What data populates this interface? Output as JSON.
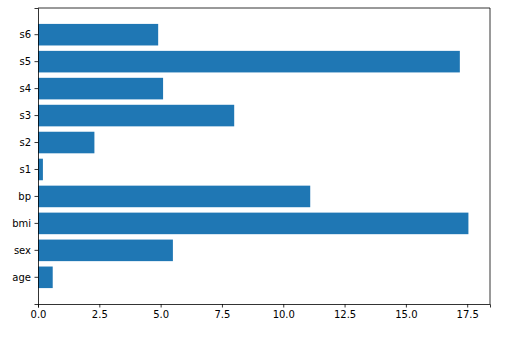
{
  "chart_data": {
    "type": "bar",
    "orientation": "horizontal",
    "categories": [
      "age",
      "sex",
      "bmi",
      "bp",
      "s1",
      "s2",
      "s3",
      "s4",
      "s5",
      "s6"
    ],
    "values": [
      0.6,
      5.5,
      17.55,
      11.1,
      0.2,
      2.3,
      8.0,
      5.1,
      17.2,
      4.9
    ],
    "color": "#1f77b4",
    "xlim": [
      0,
      18.43
    ],
    "xticks": [
      {
        "value": 0,
        "label": "0.0"
      },
      {
        "value": 2.5,
        "label": "2.5"
      },
      {
        "value": 5,
        "label": "5.0"
      },
      {
        "value": 7.5,
        "label": "7.5"
      },
      {
        "value": 10,
        "label": "10.0"
      },
      {
        "value": 12.5,
        "label": "12.5"
      },
      {
        "value": 15,
        "label": "15.0"
      },
      {
        "value": 17.5,
        "label": "17.5"
      }
    ],
    "grid": false
  }
}
